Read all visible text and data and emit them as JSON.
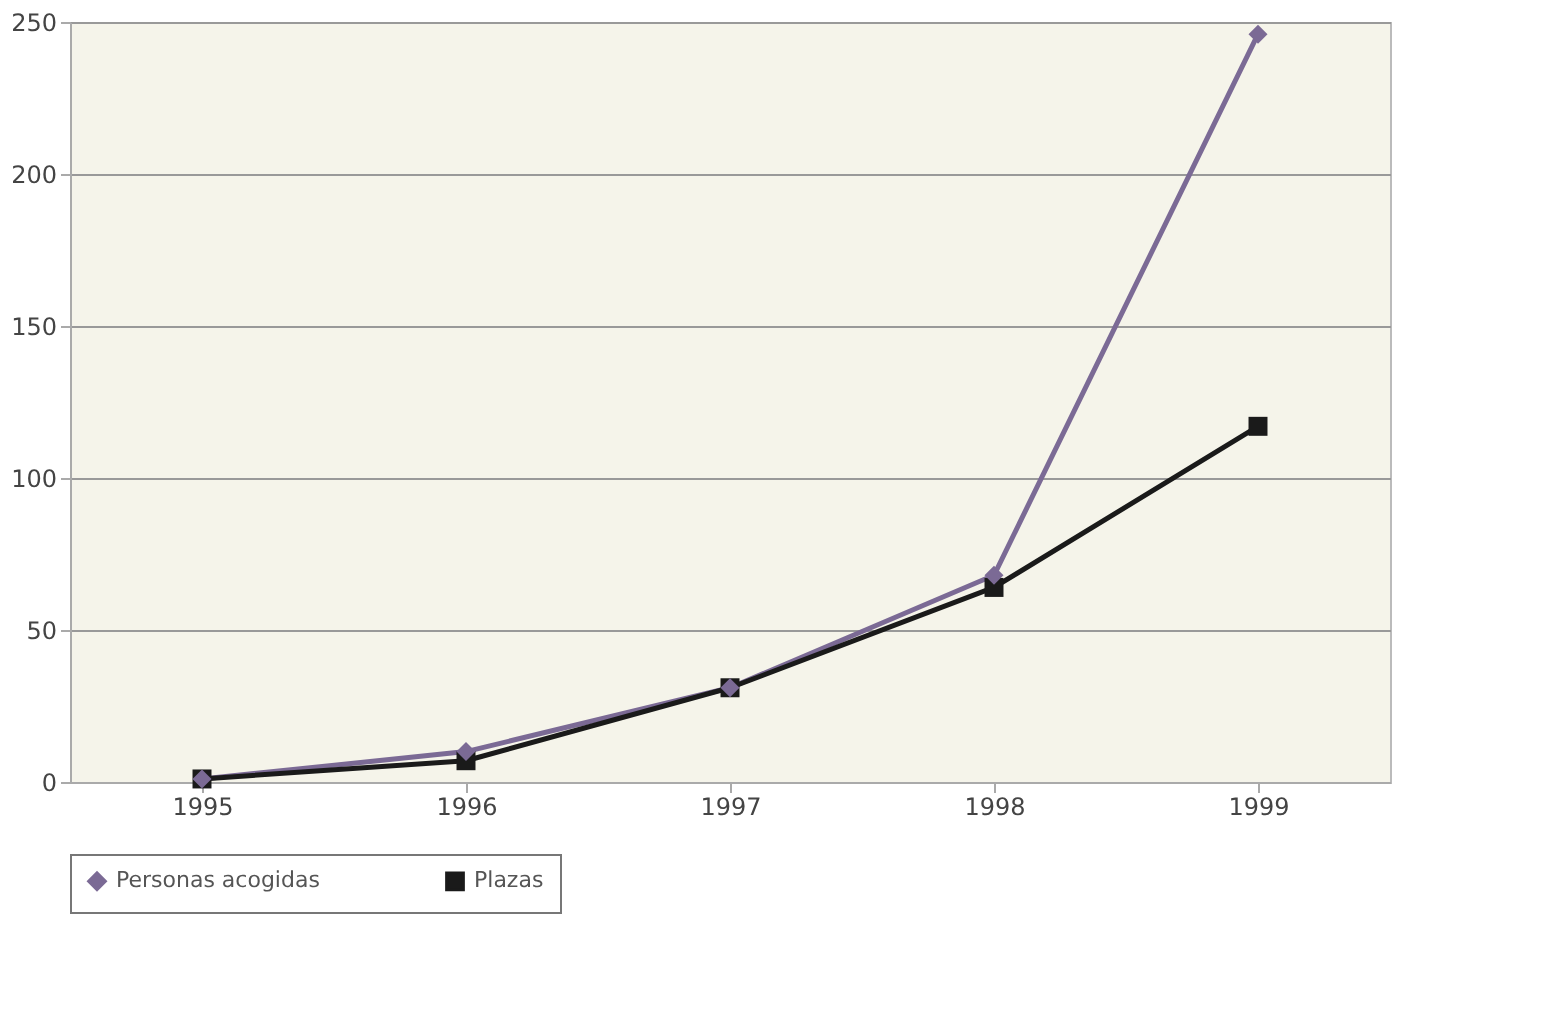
{
  "chart_data": {
    "type": "line",
    "categories": [
      "1995",
      "1996",
      "1997",
      "1998",
      "1999"
    ],
    "series": [
      {
        "name": "Personas acogidas",
        "color": "#7b6a95",
        "marker": "diamond",
        "values": [
          1,
          10,
          31,
          68,
          246
        ]
      },
      {
        "name": "Plazas",
        "color": "#1a1a1a",
        "marker": "square",
        "values": [
          1,
          7,
          31,
          64,
          117
        ]
      }
    ],
    "ylim": [
      0,
      250
    ],
    "yticks": [
      0,
      50,
      100,
      150,
      200,
      250
    ],
    "grid": "y",
    "legend": "bottom",
    "line_style": "solid"
  }
}
